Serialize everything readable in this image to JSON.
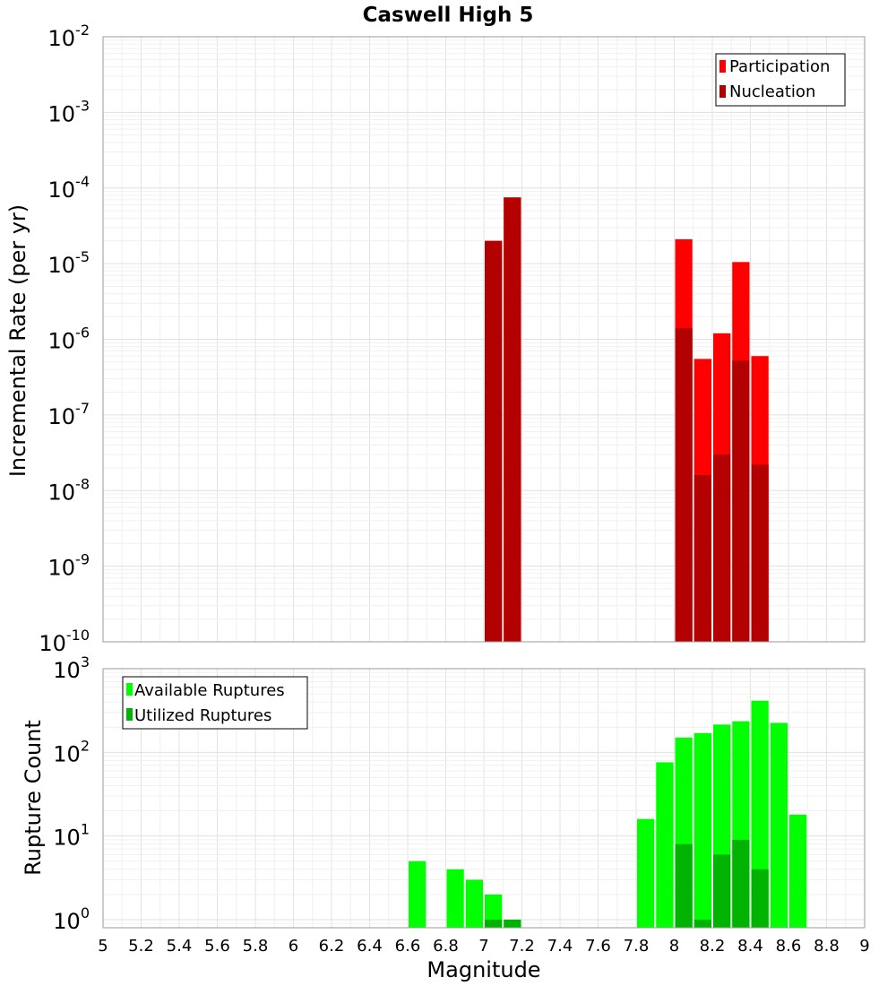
{
  "chart_data": [
    {
      "type": "bar",
      "title": "Caswell High 5",
      "xlabel": "Magnitude",
      "ylabel": "Incremental Rate (per yr)",
      "yscale": "log",
      "ylim": [
        1e-10,
        0.01
      ],
      "xlim": [
        5,
        9
      ],
      "bar_width": 0.1,
      "grid": true,
      "legend_position": "top-right",
      "y_ticks": [
        {
          "base": "10",
          "exp": "-10",
          "value": 1e-10
        },
        {
          "base": "10",
          "exp": "-9",
          "value": 1e-09
        },
        {
          "base": "10",
          "exp": "-8",
          "value": 1e-08
        },
        {
          "base": "10",
          "exp": "-7",
          "value": 1e-07
        },
        {
          "base": "10",
          "exp": "-6",
          "value": 1e-06
        },
        {
          "base": "10",
          "exp": "-5",
          "value": 1e-05
        },
        {
          "base": "10",
          "exp": "-4",
          "value": 0.0001
        },
        {
          "base": "10",
          "exp": "-3",
          "value": 0.001
        },
        {
          "base": "10",
          "exp": "-2",
          "value": 0.01
        }
      ],
      "series": [
        {
          "name": "Participation",
          "color": "#ff0000",
          "points": [
            {
              "x": 7.05,
              "y": 2e-05
            },
            {
              "x": 7.15,
              "y": 7.5e-05
            },
            {
              "x": 8.05,
              "y": 2.1e-05
            },
            {
              "x": 8.15,
              "y": 5.5e-07
            },
            {
              "x": 8.25,
              "y": 1.2e-06
            },
            {
              "x": 8.35,
              "y": 1.05e-05
            },
            {
              "x": 8.45,
              "y": 6e-07
            }
          ]
        },
        {
          "name": "Nucleation",
          "color": "#b30000",
          "points": [
            {
              "x": 7.05,
              "y": 2e-05
            },
            {
              "x": 7.15,
              "y": 7.5e-05
            },
            {
              "x": 8.05,
              "y": 1.4e-06
            },
            {
              "x": 8.15,
              "y": 1.6e-08
            },
            {
              "x": 8.25,
              "y": 3e-08
            },
            {
              "x": 8.35,
              "y": 5.2e-07
            },
            {
              "x": 8.45,
              "y": 2.2e-08
            }
          ]
        }
      ]
    },
    {
      "type": "bar",
      "xlabel": "Magnitude",
      "ylabel": "Rupture Count",
      "yscale": "log",
      "ylim": [
        0.8,
        1000
      ],
      "xlim": [
        5,
        9
      ],
      "bar_width": 0.1,
      "grid": true,
      "legend_position": "top-left",
      "y_ticks": [
        {
          "base": "10",
          "exp": "0",
          "value": 1
        },
        {
          "base": "10",
          "exp": "1",
          "value": 10
        },
        {
          "base": "10",
          "exp": "2",
          "value": 100
        },
        {
          "base": "10",
          "exp": "3",
          "value": 1000
        }
      ],
      "x_ticks": [
        "5",
        "5.2",
        "5.4",
        "5.6",
        "5.8",
        "6",
        "6.2",
        "6.4",
        "6.6",
        "6.8",
        "7",
        "7.2",
        "7.4",
        "7.6",
        "7.8",
        "8",
        "8.2",
        "8.4",
        "8.6",
        "8.8",
        "9"
      ],
      "series": [
        {
          "name": "Available Ruptures",
          "color": "#00ff00",
          "points": [
            {
              "x": 6.65,
              "y": 5
            },
            {
              "x": 6.85,
              "y": 4
            },
            {
              "x": 6.95,
              "y": 3
            },
            {
              "x": 7.05,
              "y": 2
            },
            {
              "x": 7.15,
              "y": 1
            },
            {
              "x": 7.85,
              "y": 16
            },
            {
              "x": 7.95,
              "y": 76
            },
            {
              "x": 8.05,
              "y": 150
            },
            {
              "x": 8.15,
              "y": 170
            },
            {
              "x": 8.25,
              "y": 215
            },
            {
              "x": 8.35,
              "y": 235
            },
            {
              "x": 8.45,
              "y": 415
            },
            {
              "x": 8.55,
              "y": 225
            },
            {
              "x": 8.65,
              "y": 18
            }
          ]
        },
        {
          "name": "Utilized Ruptures",
          "color": "#00b300",
          "points": [
            {
              "x": 7.05,
              "y": 1
            },
            {
              "x": 7.15,
              "y": 1
            },
            {
              "x": 8.05,
              "y": 8
            },
            {
              "x": 8.15,
              "y": 1
            },
            {
              "x": 8.25,
              "y": 6
            },
            {
              "x": 8.35,
              "y": 9
            },
            {
              "x": 8.45,
              "y": 4
            }
          ]
        }
      ]
    }
  ]
}
